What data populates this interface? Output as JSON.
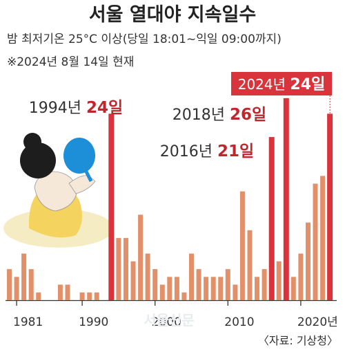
{
  "header": {
    "title": "서울 열대야 지속일수",
    "subtitle": "밤 최저기온 25°C 이상(당일 18:01~익일 09:00까지)",
    "note": "※2024년 8월 14일 현재"
  },
  "source": "〈자료: 기상청〉",
  "watermark": "서울신문",
  "colors": {
    "normal": "#e2906a",
    "highlight": "#d9343b",
    "axis": "#333333",
    "box": "#d9343b"
  },
  "annotations": [
    {
      "year": 1994,
      "label": "1994년",
      "value_text": "24일"
    },
    {
      "year": 2016,
      "label": "2016년",
      "value_text": "21일"
    },
    {
      "year": 2018,
      "label": "2018년",
      "value_text": "26일"
    },
    {
      "year": 2024,
      "label": "2024년",
      "value_text": "24일",
      "boxed": true
    }
  ],
  "chart_data": {
    "type": "bar",
    "title": "서울 열대야 지속일수",
    "xlabel": "",
    "ylabel": "",
    "x_tick_labels": [
      "1981",
      "1990",
      "2000",
      "2010",
      "2020년"
    ],
    "x_tick_years": [
      1981,
      1990,
      2000,
      2010,
      2020
    ],
    "x": [
      1980,
      1981,
      1982,
      1983,
      1984,
      1985,
      1986,
      1987,
      1988,
      1989,
      1990,
      1991,
      1992,
      1993,
      1994,
      1995,
      1996,
      1997,
      1998,
      1999,
      2000,
      2001,
      2002,
      2003,
      2004,
      2005,
      2006,
      2007,
      2008,
      2009,
      2010,
      2011,
      2012,
      2013,
      2014,
      2015,
      2016,
      2017,
      2018,
      2019,
      2020,
      2021,
      2022,
      2023,
      2024
    ],
    "values": [
      4,
      3,
      6,
      4,
      1,
      0,
      0,
      2,
      2,
      0,
      1,
      1,
      1,
      0,
      24,
      8,
      8,
      5,
      11,
      6,
      4,
      2,
      3,
      3,
      1,
      6,
      4,
      3,
      3,
      3,
      4,
      2,
      14,
      9,
      3,
      4,
      21,
      5,
      26,
      3,
      6,
      10,
      15,
      16,
      24
    ],
    "highlight_years": [
      1994,
      2016,
      2018,
      2024
    ],
    "ylim": [
      0,
      30
    ],
    "grid": false
  }
}
